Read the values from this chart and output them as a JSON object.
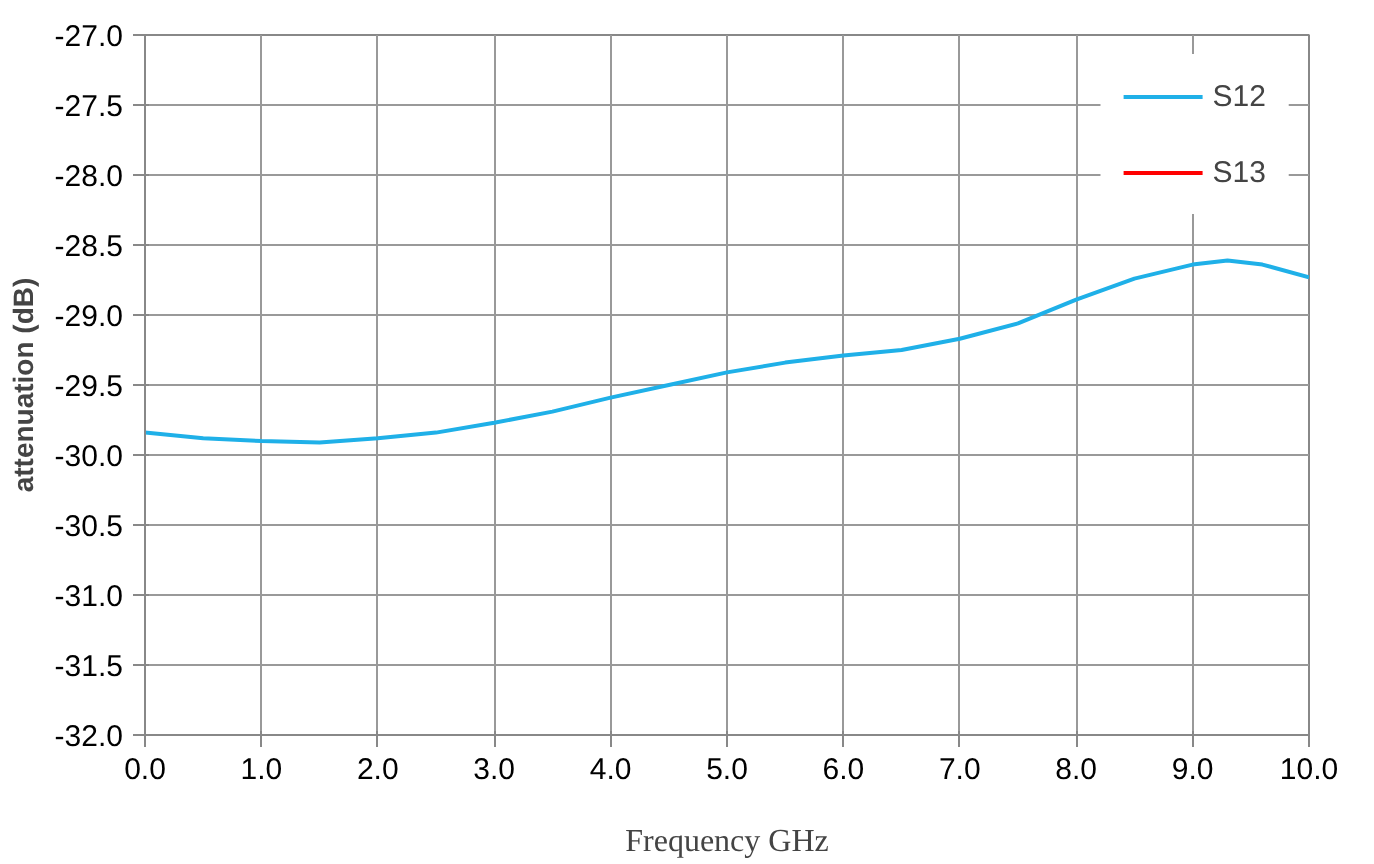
{
  "chart_data": {
    "type": "line",
    "xlabel": "Frequency GHz",
    "ylabel": "attenuation (dB)",
    "xlim": [
      0,
      10
    ],
    "ylim": [
      -32,
      -27
    ],
    "xticks": [
      {
        "value": 0,
        "label": "0.0"
      },
      {
        "value": 1,
        "label": "1.0"
      },
      {
        "value": 2,
        "label": "2.0"
      },
      {
        "value": 3,
        "label": "3.0"
      },
      {
        "value": 4,
        "label": "4.0"
      },
      {
        "value": 5,
        "label": "5.0"
      },
      {
        "value": 6,
        "label": "6.0"
      },
      {
        "value": 7,
        "label": "7.0"
      },
      {
        "value": 8,
        "label": "8.0"
      },
      {
        "value": 9,
        "label": "9.0"
      },
      {
        "value": 10,
        "label": "10.0"
      }
    ],
    "yticks": [
      {
        "value": -32,
        "label": "-32.0"
      },
      {
        "value": -31.5,
        "label": "-31.5"
      },
      {
        "value": -31,
        "label": "-31.0"
      },
      {
        "value": -30.5,
        "label": "-30.5"
      },
      {
        "value": -30,
        "label": "-30.0"
      },
      {
        "value": -29.5,
        "label": "-29.5"
      },
      {
        "value": -29,
        "label": "-29.0"
      },
      {
        "value": -28.5,
        "label": "-28.5"
      },
      {
        "value": -28,
        "label": "-28.0"
      },
      {
        "value": -27.5,
        "label": "-27.5"
      },
      {
        "value": -27,
        "label": "-27.0"
      }
    ],
    "x": [
      0,
      0.5,
      1,
      1.5,
      2,
      2.5,
      3,
      3.5,
      4,
      4.5,
      5,
      5.5,
      6,
      6.5,
      7,
      7.5,
      8,
      8.5,
      9,
      9.3,
      9.6,
      10
    ],
    "series": [
      {
        "name": "S12",
        "color": "#1fb0e8",
        "values": [
          -29.84,
          -29.88,
          -29.9,
          -29.91,
          -29.88,
          -29.84,
          -29.77,
          -29.69,
          -29.59,
          -29.5,
          -29.41,
          -29.34,
          -29.29,
          -29.25,
          -29.17,
          -29.06,
          -28.89,
          -28.74,
          -28.64,
          -28.61,
          -28.64,
          -28.73
        ]
      },
      {
        "name": "S13",
        "color": "#ff0000",
        "values": [
          null,
          null,
          null,
          null,
          null,
          null,
          null,
          null,
          null,
          null,
          null,
          null,
          null,
          null,
          null,
          null,
          null,
          null,
          null,
          null,
          null,
          null
        ]
      }
    ],
    "grid": true,
    "legend": "top right",
    "line_style": "solid"
  }
}
